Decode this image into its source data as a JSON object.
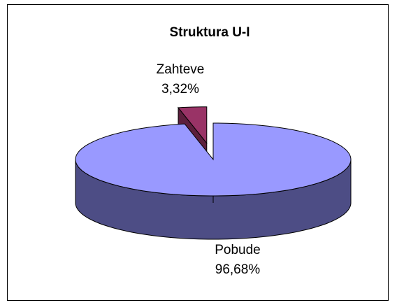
{
  "chart_data": {
    "type": "pie",
    "title": "Struktura U-I",
    "categories": [
      "Zahteve",
      "Pobude"
    ],
    "values": [
      3.32,
      96.68
    ],
    "value_labels": [
      "3,32%",
      "96,68%"
    ],
    "colors": [
      "#993366",
      "#9999ff"
    ],
    "side_colors": [
      "#5c1f3d",
      "#4d4d85"
    ]
  }
}
